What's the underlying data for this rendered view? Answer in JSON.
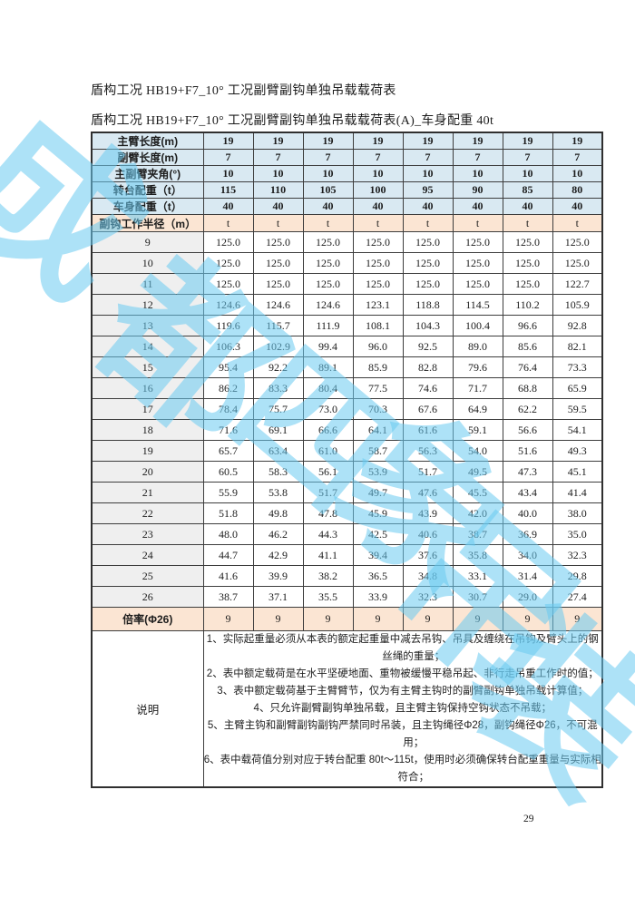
{
  "titles": {
    "main": "盾构工况 HB19+F7_10°  工况副臂副钩单独吊载载荷表",
    "sub": "盾构工况 HB19+F7_10°  工况副臂副钩单独吊载载荷表(A)_车身配重 40t"
  },
  "table": {
    "header_rows": [
      {
        "label": "主臂长度(m)",
        "values": [
          "19",
          "19",
          "19",
          "19",
          "19",
          "19",
          "19",
          "19"
        ]
      },
      {
        "label": "副臂长度(m)",
        "values": [
          "7",
          "7",
          "7",
          "7",
          "7",
          "7",
          "7",
          "7"
        ]
      },
      {
        "label": "主副臂夹角(°)",
        "values": [
          "10",
          "10",
          "10",
          "10",
          "10",
          "10",
          "10",
          "10"
        ]
      },
      {
        "label": "转台配重（t）",
        "values": [
          "115",
          "110",
          "105",
          "100",
          "95",
          "90",
          "85",
          "80"
        ]
      },
      {
        "label": "车身配重（t）",
        "values": [
          "40",
          "40",
          "40",
          "40",
          "40",
          "40",
          "40",
          "40"
        ]
      }
    ],
    "radius_row": {
      "label": "副钩工作半径（m）",
      "values": [
        "t",
        "t",
        "t",
        "t",
        "t",
        "t",
        "t",
        "t"
      ]
    },
    "data_rows": [
      {
        "radius": "9",
        "values": [
          "125.0",
          "125.0",
          "125.0",
          "125.0",
          "125.0",
          "125.0",
          "125.0",
          "125.0"
        ]
      },
      {
        "radius": "10",
        "values": [
          "125.0",
          "125.0",
          "125.0",
          "125.0",
          "125.0",
          "125.0",
          "125.0",
          "125.0"
        ]
      },
      {
        "radius": "11",
        "values": [
          "125.0",
          "125.0",
          "125.0",
          "125.0",
          "125.0",
          "125.0",
          "125.0",
          "122.7"
        ]
      },
      {
        "radius": "12",
        "values": [
          "124.6",
          "124.6",
          "124.6",
          "123.1",
          "118.8",
          "114.5",
          "110.2",
          "105.9"
        ]
      },
      {
        "radius": "13",
        "values": [
          "119.6",
          "115.7",
          "111.9",
          "108.1",
          "104.3",
          "100.4",
          "96.6",
          "92.8"
        ]
      },
      {
        "radius": "14",
        "values": [
          "106.3",
          "102.9",
          "99.4",
          "96.0",
          "92.5",
          "89.0",
          "85.6",
          "82.1"
        ]
      },
      {
        "radius": "15",
        "values": [
          "95.4",
          "92.2",
          "89.1",
          "85.9",
          "82.8",
          "79.6",
          "76.4",
          "73.3"
        ]
      },
      {
        "radius": "16",
        "values": [
          "86.2",
          "83.3",
          "80.4",
          "77.5",
          "74.6",
          "71.7",
          "68.8",
          "65.9"
        ]
      },
      {
        "radius": "17",
        "values": [
          "78.4",
          "75.7",
          "73.0",
          "70.3",
          "67.6",
          "64.9",
          "62.2",
          "59.5"
        ]
      },
      {
        "radius": "18",
        "values": [
          "71.6",
          "69.1",
          "66.6",
          "64.1",
          "61.6",
          "59.1",
          "56.6",
          "54.1"
        ]
      },
      {
        "radius": "19",
        "values": [
          "65.7",
          "63.4",
          "61.0",
          "58.7",
          "56.3",
          "54.0",
          "51.6",
          "49.3"
        ]
      },
      {
        "radius": "20",
        "values": [
          "60.5",
          "58.3",
          "56.1",
          "53.9",
          "51.7",
          "49.5",
          "47.3",
          "45.1"
        ]
      },
      {
        "radius": "21",
        "values": [
          "55.9",
          "53.8",
          "51.7",
          "49.7",
          "47.6",
          "45.5",
          "43.4",
          "41.4"
        ]
      },
      {
        "radius": "22",
        "values": [
          "51.8",
          "49.8",
          "47.8",
          "45.9",
          "43.9",
          "42.0",
          "40.0",
          "38.0"
        ]
      },
      {
        "radius": "23",
        "values": [
          "48.0",
          "46.2",
          "44.3",
          "42.5",
          "40.6",
          "38.7",
          "36.9",
          "35.0"
        ]
      },
      {
        "radius": "24",
        "values": [
          "44.7",
          "42.9",
          "41.1",
          "39.4",
          "37.6",
          "35.8",
          "34.0",
          "32.3"
        ]
      },
      {
        "radius": "25",
        "values": [
          "41.6",
          "39.9",
          "38.2",
          "36.5",
          "34.8",
          "33.1",
          "31.4",
          "29.8"
        ]
      },
      {
        "radius": "26",
        "values": [
          "38.7",
          "37.1",
          "35.5",
          "33.9",
          "32.3",
          "30.7",
          "29.0",
          "27.4"
        ]
      }
    ],
    "ratio_row": {
      "label": "倍率(Φ26)",
      "values": [
        "9",
        "9",
        "9",
        "9",
        "9",
        "9",
        "9",
        "9"
      ]
    },
    "notes_label": "说明",
    "notes": [
      "1、实际起重量必须从本表的额定起重量中减去吊钩、吊具及缠绕在吊钩及臂头上的钢丝绳的重量；",
      "2、表中额定载荷是在水平坚硬地面、重物被缓慢平稳吊起、非行走吊重工作时的值；",
      "3、表中额定载荷基于主臂臂节，仅为有主臂主钩时的副臂副钩单独吊载计算值；",
      "4、只允许副臂副钩单独吊载，且主臂主钩保持空钩状态不吊载；",
      "5、主臂主钩和副臂副钩副钩严禁同时吊装，且主钩绳径Φ28，副钩绳径Φ26，不可混用；",
      "6、表中载荷值分别对应于转台配重 80t～115t，使用时必须确保转台配重重量与实际相符合；"
    ]
  },
  "watermark": {
    "characters": [
      "成",
      "都",
      "四",
      "象",
      "吊",
      "装"
    ],
    "color": "#69caf0"
  },
  "page": {
    "number": "29"
  },
  "colors": {
    "header_blue": "#d9e9f2",
    "peach": "#fbe5d3",
    "label_gray": "#efefef",
    "border": "#3d3d3d",
    "watermark_blue": "#69caf0"
  }
}
